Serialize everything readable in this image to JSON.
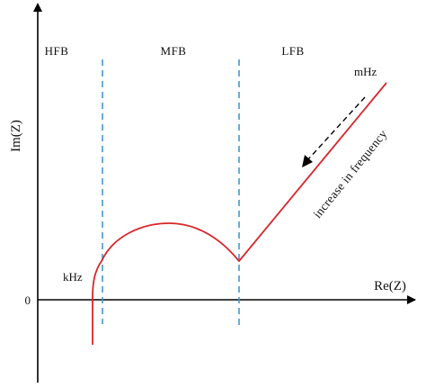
{
  "diagram": {
    "regions": [
      {
        "id": "hfb",
        "label": "HFB"
      },
      {
        "id": "mfb",
        "label": "MFB"
      },
      {
        "id": "lfb",
        "label": "LFB"
      }
    ],
    "axes": {
      "x_label": "Re(Z)",
      "y_label": "Im(Z)",
      "origin_label": "0"
    },
    "annotations": {
      "high_freq": "kHz",
      "low_freq": "mHz",
      "direction": "increase in frequency"
    },
    "colors": {
      "curve": "#d9262b",
      "divider": "#3b9bd6",
      "axis": "#000000",
      "arrow": "#000000"
    }
  }
}
